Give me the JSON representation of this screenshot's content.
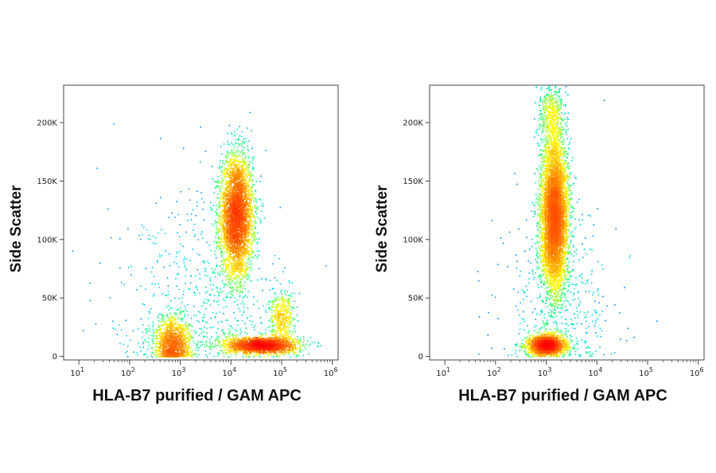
{
  "chart_data": [
    {
      "type": "scatter",
      "xlabel": "HLA-B7 purified / GAM APC",
      "ylabel": "Side Scatter",
      "x_scale": "log",
      "x_ticks": [
        {
          "value": 10,
          "base": "10",
          "exp": "1"
        },
        {
          "value": 100,
          "base": "10",
          "exp": "2"
        },
        {
          "value": 1000,
          "base": "10",
          "exp": "3"
        },
        {
          "value": 10000,
          "base": "10",
          "exp": "4"
        },
        {
          "value": 100000,
          "base": "10",
          "exp": "5"
        },
        {
          "value": 1000000,
          "base": "10",
          "exp": "6"
        }
      ],
      "y_ticks": [
        {
          "value": 0,
          "label": "0"
        },
        {
          "value": 50000,
          "label": "50K"
        },
        {
          "value": 100000,
          "label": "100K"
        },
        {
          "value": 150000,
          "label": "150K"
        },
        {
          "value": 200000,
          "label": "200K"
        }
      ],
      "xlim": [
        5,
        1300000
      ],
      "ylim": [
        -3000,
        232000
      ],
      "colormap": [
        "#0000ff",
        "#00c8ff",
        "#00ff80",
        "#ffff00",
        "#ff8000",
        "#ff0000"
      ],
      "populations": [
        {
          "x_log10_center": 4.1,
          "x_log10_sd": 0.16,
          "y_center": 120000,
          "y_sd": 26000,
          "n": 4200,
          "density": "medium"
        },
        {
          "x_log10_center": 4.6,
          "x_log10_sd": 0.35,
          "y_center": 10000,
          "y_sd": 3500,
          "n": 2200,
          "density": "high"
        },
        {
          "x_log10_center": 5.0,
          "x_log10_sd": 0.12,
          "y_center": 33000,
          "y_sd": 11000,
          "n": 450,
          "density": "low"
        },
        {
          "x_log10_center": 2.85,
          "x_log10_sd": 0.18,
          "y_center": 12000,
          "y_sd": 11000,
          "n": 1300,
          "density": "medium"
        },
        {
          "x_log10_center": 3.4,
          "x_log10_sd": 0.8,
          "y_center": 40000,
          "y_sd": 50000,
          "n": 600,
          "density": "sparse"
        }
      ]
    },
    {
      "type": "scatter",
      "xlabel": "HLA-B7 purified / GAM APC",
      "ylabel": "Side Scatter",
      "x_scale": "log",
      "x_ticks": [
        {
          "value": 10,
          "base": "10",
          "exp": "1"
        },
        {
          "value": 100,
          "base": "10",
          "exp": "2"
        },
        {
          "value": 1000,
          "base": "10",
          "exp": "3"
        },
        {
          "value": 10000,
          "base": "10",
          "exp": "4"
        },
        {
          "value": 100000,
          "base": "10",
          "exp": "5"
        },
        {
          "value": 1000000,
          "base": "10",
          "exp": "6"
        }
      ],
      "y_ticks": [
        {
          "value": 0,
          "label": "0"
        },
        {
          "value": 50000,
          "label": "50K"
        },
        {
          "value": 100000,
          "label": "100K"
        },
        {
          "value": 150000,
          "label": "150K"
        },
        {
          "value": 200000,
          "label": "200K"
        }
      ],
      "xlim": [
        5,
        1300000
      ],
      "ylim": [
        -3000,
        232000
      ],
      "colormap": [
        "#0000ff",
        "#00c8ff",
        "#00ff80",
        "#ffff00",
        "#ff8000",
        "#ff0000"
      ],
      "populations": [
        {
          "x_log10_center": 3.15,
          "x_log10_sd": 0.13,
          "y_center": 120000,
          "y_sd": 32000,
          "n": 6200,
          "density": "high"
        },
        {
          "x_log10_center": 3.0,
          "x_log10_sd": 0.18,
          "y_center": 10000,
          "y_sd": 4000,
          "n": 2400,
          "density": "high"
        },
        {
          "x_log10_center": 3.1,
          "x_log10_sd": 0.12,
          "y_center": 205000,
          "y_sd": 15000,
          "n": 500,
          "density": "medium"
        },
        {
          "x_log10_center": 3.2,
          "x_log10_sd": 0.55,
          "y_center": 40000,
          "y_sd": 45000,
          "n": 500,
          "density": "sparse"
        }
      ]
    }
  ]
}
